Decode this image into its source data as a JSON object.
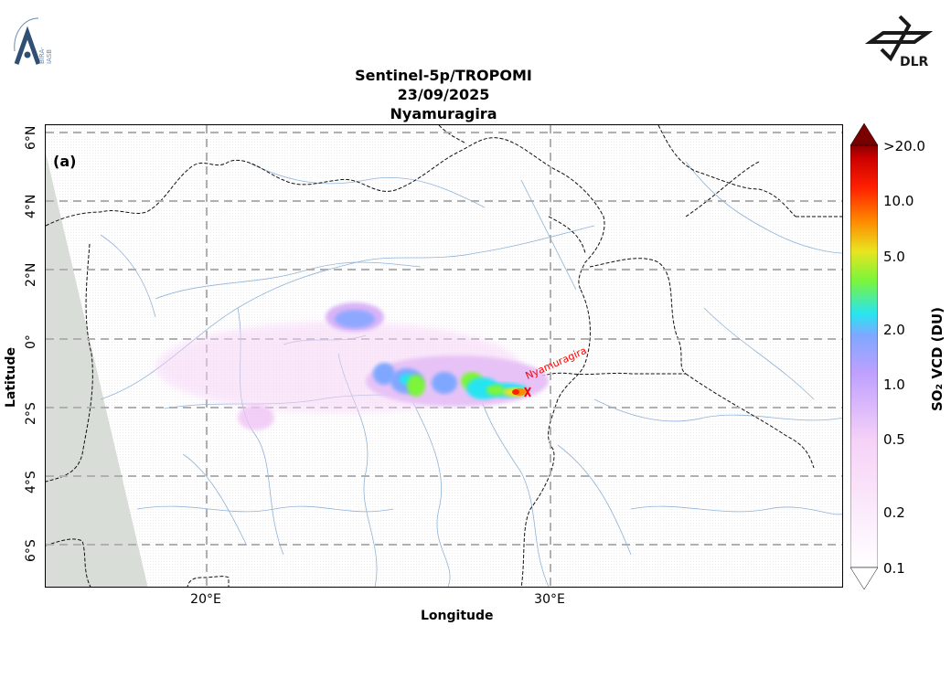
{
  "header": {
    "title_line1": "Sentinel-5p/TROPOMI",
    "title_line2": "23/09/2025",
    "title_line3": "Nyamuragira"
  },
  "logos": {
    "left_text": "BIRA-IASB",
    "right_text": "DLR"
  },
  "map": {
    "panel_label": "(a)",
    "volcano_label": "Nyamuragira",
    "x_ticks": [
      "20°E",
      "30°E"
    ],
    "y_ticks": [
      "6°N",
      "4°N",
      "2°N",
      "0°",
      "2°S",
      "4°S",
      "6°S"
    ],
    "xlabel": "Longitude",
    "ylabel": "Latitude",
    "grid": true
  },
  "colorbar": {
    "label": "SO₂ VCD (DU)",
    "ticks": [
      ">20.0",
      "10.0",
      "5.0",
      "2.0",
      "1.0",
      "0.5",
      "0.2",
      "0.1"
    ],
    "scale": "log",
    "colors": [
      "#ffffff",
      "#f6d2f7",
      "#bfa0ff",
      "#7fa7ff",
      "#28e4f2",
      "#7cf53a",
      "#e9e41f",
      "#ff8a00",
      "#ff2000",
      "#cc0000",
      "#7a0000"
    ]
  }
}
